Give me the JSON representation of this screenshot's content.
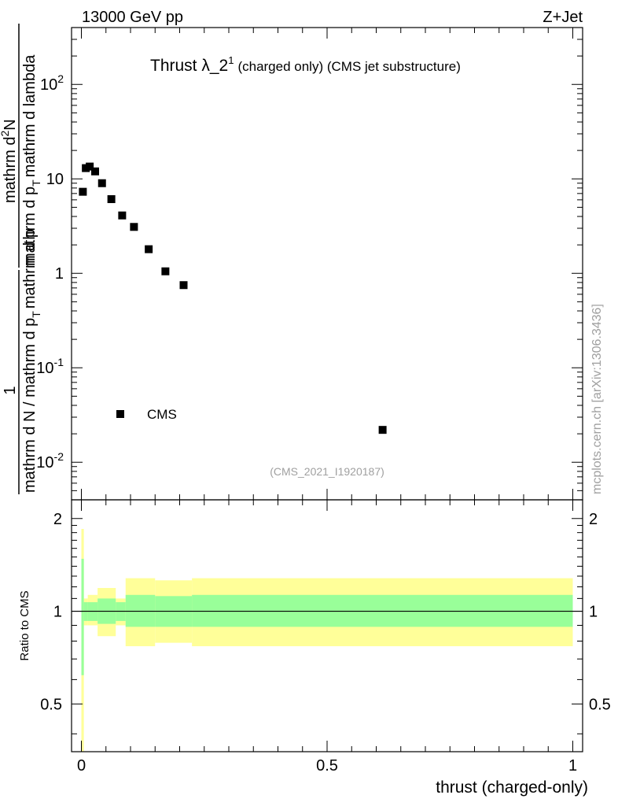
{
  "header": {
    "left_label": "13000 GeV pp",
    "right_label": "Z+Jet"
  },
  "side_label": "mcplots.cern.ch [arXiv:1306.3436]",
  "chart_data": [
    {
      "type": "scatter",
      "title_main": "Thrust λ_2",
      "title_sup": "1",
      "title_rest": "(charged only) (CMS jet substructure)",
      "yscale": "log",
      "ylim": [
        0.004,
        400
      ],
      "xlim": [
        -0.02,
        1.02
      ],
      "ytick_labels": [
        {
          "value": 0.01,
          "base": "10",
          "exp": "-2"
        },
        {
          "value": 0.1,
          "base": "10",
          "exp": "-1"
        },
        {
          "value": 1,
          "base": "1",
          "exp": ""
        },
        {
          "value": 10,
          "base": "10",
          "exp": ""
        },
        {
          "value": 100,
          "base": "10",
          "exp": "2"
        }
      ],
      "ylabel_parts": {
        "num_one": "1",
        "den_one": "mathrm d N / mathrm d p",
        "den_one_sub": "T",
        "den_one_rest": "mathrm d p",
        "num_two": "mathrm d",
        "num_two_sup": "2",
        "num_two_rest": "N",
        "den_two": "mathrm d p",
        "den_two_sub": "T",
        "den_two_rest": "mathrm d lambda"
      },
      "series": [
        {
          "name": "CMS",
          "color": "#000000",
          "x": [
            0.003,
            0.009,
            0.017,
            0.028,
            0.042,
            0.061,
            0.083,
            0.107,
            0.137,
            0.171,
            0.208,
            0.613
          ],
          "y": [
            7.3,
            13.0,
            13.5,
            12.0,
            9.0,
            6.1,
            4.1,
            3.1,
            1.8,
            1.05,
            0.75,
            0.022
          ]
        }
      ],
      "legend_placement": "lower-left",
      "watermark": "(CMS_2021_I1920187)"
    },
    {
      "type": "area",
      "ylabel": "Ratio to CMS",
      "xlabel": "thrust (charged-only)",
      "ylim": [
        0.35,
        2.3
      ],
      "yscale": "log",
      "ytick_labels": [
        {
          "value": 0.5,
          "label": "0.5"
        },
        {
          "value": 1,
          "label": "1"
        },
        {
          "value": 2,
          "label": "2"
        }
      ],
      "xtick_labels": [
        {
          "value": 0,
          "label": "0"
        },
        {
          "value": 0.5,
          "label": "0.5"
        },
        {
          "value": 1,
          "label": "1"
        }
      ],
      "reference_line": 1,
      "bins": [
        {
          "x0": 0.0,
          "x1": 0.005,
          "in_lo": 0.62,
          "in_hi": 1.48,
          "out_lo": 0.35,
          "out_hi": 1.85
        },
        {
          "x0": 0.005,
          "x1": 0.013,
          "in_lo": 0.93,
          "in_hi": 1.07,
          "out_lo": 0.9,
          "out_hi": 1.1
        },
        {
          "x0": 0.013,
          "x1": 0.033,
          "in_lo": 0.93,
          "in_hi": 1.07,
          "out_lo": 0.9,
          "out_hi": 1.13
        },
        {
          "x0": 0.033,
          "x1": 0.07,
          "in_lo": 0.91,
          "in_hi": 1.1,
          "out_lo": 0.83,
          "out_hi": 1.19
        },
        {
          "x0": 0.07,
          "x1": 0.09,
          "in_lo": 0.93,
          "in_hi": 1.07,
          "out_lo": 0.9,
          "out_hi": 1.1
        },
        {
          "x0": 0.09,
          "x1": 0.15,
          "in_lo": 0.89,
          "in_hi": 1.13,
          "out_lo": 0.77,
          "out_hi": 1.28
        },
        {
          "x0": 0.15,
          "x1": 0.225,
          "in_lo": 0.89,
          "in_hi": 1.12,
          "out_lo": 0.79,
          "out_hi": 1.26
        },
        {
          "x0": 0.225,
          "x1": 1.0,
          "in_lo": 0.89,
          "in_hi": 1.13,
          "out_lo": 0.77,
          "out_hi": 1.28
        }
      ],
      "band_colors": {
        "inner": "#99ff99",
        "outer": "#ffff99"
      }
    }
  ]
}
